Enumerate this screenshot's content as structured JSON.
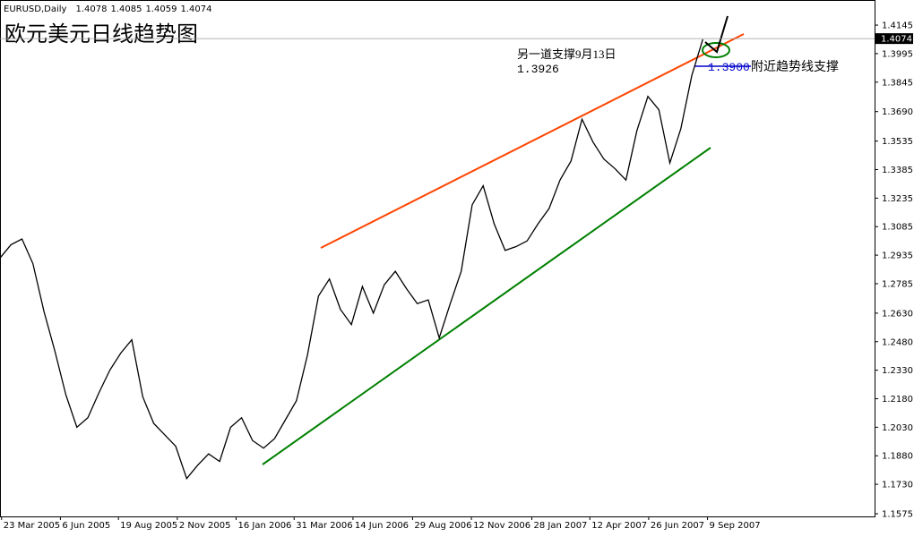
{
  "chart_data": {
    "type": "line",
    "title": "欧元美元日线趋势图",
    "symbol": "EURUSD,Daily",
    "header_ohlc": [
      1.4078,
      1.4085,
      1.4059,
      1.4074
    ],
    "color": "#000000",
    "x": [
      "2005-03-21",
      "2005-04-04",
      "2005-04-18",
      "2005-05-02",
      "2005-05-16",
      "2005-05-30",
      "2005-06-13",
      "2005-06-27",
      "2005-07-11",
      "2005-07-25",
      "2005-08-08",
      "2005-08-22",
      "2005-09-05",
      "2005-09-19",
      "2005-10-03",
      "2005-10-17",
      "2005-10-31",
      "2005-11-14",
      "2005-11-28",
      "2005-12-12",
      "2005-12-26",
      "2006-01-09",
      "2006-01-23",
      "2006-02-06",
      "2006-02-20",
      "2006-03-06",
      "2006-03-20",
      "2006-04-03",
      "2006-04-17",
      "2006-05-01",
      "2006-05-15",
      "2006-05-29",
      "2006-06-12",
      "2006-06-26",
      "2006-07-10",
      "2006-07-24",
      "2006-08-07",
      "2006-08-21",
      "2006-09-04",
      "2006-09-18",
      "2006-10-02",
      "2006-10-16",
      "2006-10-30",
      "2006-11-13",
      "2006-11-27",
      "2006-12-11",
      "2006-12-25",
      "2007-01-08",
      "2007-01-22",
      "2007-02-05",
      "2007-02-19",
      "2007-03-05",
      "2007-03-19",
      "2007-04-02",
      "2007-04-16",
      "2007-04-30",
      "2007-05-14",
      "2007-05-28",
      "2007-06-11",
      "2007-06-25",
      "2007-07-09",
      "2007-07-23",
      "2007-08-06",
      "2007-08-20",
      "2007-09-03"
    ],
    "values": [
      1.292,
      1.299,
      1.302,
      1.289,
      1.264,
      1.243,
      1.22,
      1.203,
      1.208,
      1.221,
      1.233,
      1.242,
      1.249,
      1.219,
      1.205,
      1.199,
      1.193,
      1.176,
      1.183,
      1.189,
      1.185,
      1.203,
      1.208,
      1.196,
      1.192,
      1.197,
      1.207,
      1.217,
      1.241,
      1.272,
      1.281,
      1.265,
      1.257,
      1.277,
      1.263,
      1.278,
      1.285,
      1.276,
      1.268,
      1.27,
      1.25,
      1.268,
      1.285,
      1.32,
      1.33,
      1.31,
      1.296,
      1.298,
      1.301,
      1.31,
      1.318,
      1.333,
      1.343,
      1.365,
      1.353,
      1.344,
      1.339,
      1.333,
      1.359,
      1.377,
      1.37,
      1.342,
      1.36,
      1.388,
      1.407
    ],
    "current_price": 1.4074,
    "xlim": [
      "2005-03-21",
      "2008-04-09"
    ],
    "xticks": [
      {
        "value": "2005-03-23",
        "label": "23 Mar 2005"
      },
      {
        "value": "2005-06-06",
        "label": "6 Jun 2005"
      },
      {
        "value": "2005-08-19",
        "label": "19 Aug 2005"
      },
      {
        "value": "2005-11-02",
        "label": "2 Nov 2005"
      },
      {
        "value": "2006-01-16",
        "label": "16 Jan 2006"
      },
      {
        "value": "2006-03-31",
        "label": "31 Mar 2006"
      },
      {
        "value": "2006-06-14",
        "label": "14 Jun 2006"
      },
      {
        "value": "2006-08-29",
        "label": "29 Aug 2006"
      },
      {
        "value": "2006-11-12",
        "label": "12 Nov 2006"
      },
      {
        "value": "2007-01-28",
        "label": "28 Jan 2007"
      },
      {
        "value": "2007-04-12",
        "label": "12 Apr 2007"
      },
      {
        "value": "2007-06-26",
        "label": "26 Jun 2007"
      },
      {
        "value": "2007-09-09",
        "label": "9 Sep 2007"
      }
    ],
    "ylim": [
      1.1561,
      1.4277
    ],
    "yticks": [
      1.4145,
      1.3995,
      1.3845,
      {
        "value": 1.369,
        "label": "1.3690"
      },
      1.3535,
      1.3385,
      1.3235,
      1.3085,
      1.2935,
      1.2785,
      {
        "value": 1.263,
        "label": "1.2630"
      },
      {
        "value": 1.248,
        "label": "1.2480"
      },
      {
        "value": 1.233,
        "label": "1.2330"
      },
      {
        "value": 1.218,
        "label": "1.2180"
      },
      {
        "value": 1.203,
        "label": "1.2030"
      },
      {
        "value": 1.188,
        "label": "1.1880"
      },
      {
        "value": 1.173,
        "label": "1.1730"
      },
      1.1575
    ],
    "annotations": [
      "另一道支撑9月13日",
      "1.3926",
      "1.3900",
      "附近趋势线支撑"
    ]
  }
}
